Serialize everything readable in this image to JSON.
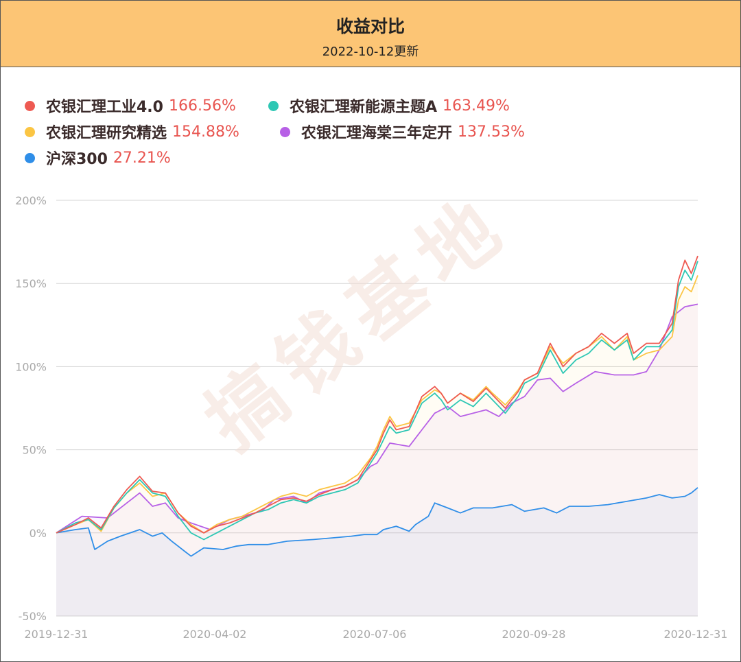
{
  "header": {
    "title": "收益对比",
    "subtitle": "2022-10-12更新"
  },
  "legend": [
    {
      "name": "农银汇理工业4.0",
      "pct": "166.56%",
      "color": "#ee5a52"
    },
    {
      "name": "农银汇理新能源主题A",
      "pct": "163.49%",
      "color": "#2ec7b4"
    },
    {
      "name": "农银汇理研究精选",
      "pct": "154.88%",
      "color": "#fbc543"
    },
    {
      "name": "农银汇理海棠三年定开",
      "pct": "137.53%",
      "color": "#b760e6"
    },
    {
      "name": "沪深300",
      "pct": "27.21%",
      "color": "#2f8ee8"
    }
  ],
  "watermark": "搞钱基地",
  "chart_data": {
    "type": "line",
    "y_ticks": [
      "200%",
      "150%",
      "100%",
      "50%",
      "0%",
      "-50%"
    ],
    "x_ticks": [
      "2019-12-31",
      "2020-04-02",
      "2020-07-06",
      "2020-09-28",
      "2020-12-31"
    ],
    "ylim": [
      -50,
      200
    ],
    "xlim": [
      0,
      1
    ],
    "grid": true,
    "series": [
      {
        "name": "沪深300",
        "color": "#2f8ee8",
        "fill": true,
        "points": [
          [
            0,
            0
          ],
          [
            0.03,
            2
          ],
          [
            0.05,
            3
          ],
          [
            0.06,
            -10
          ],
          [
            0.08,
            -5
          ],
          [
            0.1,
            -2
          ],
          [
            0.13,
            2
          ],
          [
            0.15,
            -2
          ],
          [
            0.165,
            0
          ],
          [
            0.18,
            -5
          ],
          [
            0.2,
            -11
          ],
          [
            0.21,
            -14
          ],
          [
            0.23,
            -9
          ],
          [
            0.26,
            -10
          ],
          [
            0.28,
            -8
          ],
          [
            0.3,
            -7
          ],
          [
            0.33,
            -7
          ],
          [
            0.36,
            -5
          ],
          [
            0.4,
            -4
          ],
          [
            0.43,
            -3
          ],
          [
            0.46,
            -2
          ],
          [
            0.48,
            -1
          ],
          [
            0.5,
            -1
          ],
          [
            0.51,
            2
          ],
          [
            0.53,
            4
          ],
          [
            0.55,
            1
          ],
          [
            0.56,
            5
          ],
          [
            0.58,
            10
          ],
          [
            0.59,
            18
          ],
          [
            0.61,
            15
          ],
          [
            0.63,
            12
          ],
          [
            0.65,
            15
          ],
          [
            0.68,
            15
          ],
          [
            0.71,
            17
          ],
          [
            0.73,
            13
          ],
          [
            0.76,
            15
          ],
          [
            0.78,
            12
          ],
          [
            0.8,
            16
          ],
          [
            0.83,
            16
          ],
          [
            0.86,
            17
          ],
          [
            0.89,
            19
          ],
          [
            0.92,
            21
          ],
          [
            0.94,
            23
          ],
          [
            0.96,
            21
          ],
          [
            0.98,
            22
          ],
          [
            0.99,
            24
          ],
          [
            1,
            27.21
          ]
        ]
      },
      {
        "name": "农银汇理海棠三年定开",
        "color": "#b760e6",
        "fill": true,
        "points": [
          [
            0,
            0
          ],
          [
            0.04,
            10
          ],
          [
            0.08,
            9
          ],
          [
            0.11,
            18
          ],
          [
            0.13,
            24
          ],
          [
            0.15,
            16
          ],
          [
            0.17,
            18
          ],
          [
            0.19,
            9
          ],
          [
            0.21,
            6
          ],
          [
            0.24,
            2
          ],
          [
            0.27,
            8
          ],
          [
            0.29,
            10
          ],
          [
            0.32,
            13
          ],
          [
            0.34,
            20
          ],
          [
            0.37,
            22
          ],
          [
            0.39,
            18
          ],
          [
            0.41,
            24
          ],
          [
            0.43,
            26
          ],
          [
            0.45,
            28
          ],
          [
            0.47,
            32
          ],
          [
            0.49,
            40
          ],
          [
            0.5,
            42
          ],
          [
            0.51,
            48
          ],
          [
            0.52,
            54
          ],
          [
            0.55,
            52
          ],
          [
            0.57,
            62
          ],
          [
            0.59,
            72
          ],
          [
            0.61,
            76
          ],
          [
            0.63,
            70
          ],
          [
            0.65,
            72
          ],
          [
            0.67,
            74
          ],
          [
            0.69,
            70
          ],
          [
            0.71,
            78
          ],
          [
            0.73,
            82
          ],
          [
            0.75,
            92
          ],
          [
            0.77,
            93
          ],
          [
            0.79,
            85
          ],
          [
            0.81,
            90
          ],
          [
            0.84,
            97
          ],
          [
            0.87,
            95
          ],
          [
            0.9,
            95
          ],
          [
            0.92,
            97
          ],
          [
            0.94,
            110
          ],
          [
            0.96,
            130
          ],
          [
            0.98,
            136
          ],
          [
            1,
            137.53
          ]
        ]
      },
      {
        "name": "农银汇理研究精选",
        "color": "#fbc543",
        "fill": true,
        "points": [
          [
            0,
            0
          ],
          [
            0.03,
            5
          ],
          [
            0.05,
            8
          ],
          [
            0.07,
            1
          ],
          [
            0.09,
            15
          ],
          [
            0.11,
            24
          ],
          [
            0.13,
            30
          ],
          [
            0.15,
            22
          ],
          [
            0.17,
            24
          ],
          [
            0.19,
            12
          ],
          [
            0.21,
            5
          ],
          [
            0.23,
            0
          ],
          [
            0.25,
            5
          ],
          [
            0.27,
            8
          ],
          [
            0.29,
            10
          ],
          [
            0.31,
            14
          ],
          [
            0.33,
            18
          ],
          [
            0.35,
            22
          ],
          [
            0.37,
            24
          ],
          [
            0.39,
            22
          ],
          [
            0.41,
            26
          ],
          [
            0.43,
            28
          ],
          [
            0.45,
            30
          ],
          [
            0.47,
            35
          ],
          [
            0.49,
            45
          ],
          [
            0.5,
            52
          ],
          [
            0.51,
            62
          ],
          [
            0.52,
            70
          ],
          [
            0.53,
            64
          ],
          [
            0.55,
            66
          ],
          [
            0.57,
            80
          ],
          [
            0.59,
            86
          ],
          [
            0.6,
            84
          ],
          [
            0.61,
            78
          ],
          [
            0.63,
            84
          ],
          [
            0.65,
            80
          ],
          [
            0.67,
            88
          ],
          [
            0.68,
            84
          ],
          [
            0.7,
            77
          ],
          [
            0.72,
            86
          ],
          [
            0.73,
            92
          ],
          [
            0.75,
            96
          ],
          [
            0.77,
            112
          ],
          [
            0.79,
            102
          ],
          [
            0.81,
            108
          ],
          [
            0.83,
            112
          ],
          [
            0.85,
            118
          ],
          [
            0.87,
            110
          ],
          [
            0.89,
            118
          ],
          [
            0.9,
            104
          ],
          [
            0.92,
            108
          ],
          [
            0.94,
            110
          ],
          [
            0.96,
            118
          ],
          [
            0.97,
            140
          ],
          [
            0.98,
            148
          ],
          [
            0.99,
            145
          ],
          [
            1,
            154.88
          ]
        ]
      },
      {
        "name": "农银汇理新能源主题A",
        "color": "#2ec7b4",
        "fill": false,
        "points": [
          [
            0,
            0
          ],
          [
            0.03,
            6
          ],
          [
            0.05,
            8
          ],
          [
            0.07,
            2
          ],
          [
            0.09,
            15
          ],
          [
            0.11,
            24
          ],
          [
            0.13,
            32
          ],
          [
            0.15,
            24
          ],
          [
            0.17,
            22
          ],
          [
            0.19,
            10
          ],
          [
            0.21,
            0
          ],
          [
            0.23,
            -4
          ],
          [
            0.25,
            0
          ],
          [
            0.27,
            4
          ],
          [
            0.29,
            8
          ],
          [
            0.31,
            12
          ],
          [
            0.33,
            14
          ],
          [
            0.35,
            18
          ],
          [
            0.37,
            20
          ],
          [
            0.39,
            18
          ],
          [
            0.41,
            22
          ],
          [
            0.43,
            24
          ],
          [
            0.45,
            26
          ],
          [
            0.47,
            30
          ],
          [
            0.49,
            42
          ],
          [
            0.5,
            48
          ],
          [
            0.51,
            56
          ],
          [
            0.52,
            64
          ],
          [
            0.53,
            60
          ],
          [
            0.55,
            62
          ],
          [
            0.57,
            78
          ],
          [
            0.59,
            84
          ],
          [
            0.6,
            80
          ],
          [
            0.61,
            74
          ],
          [
            0.63,
            80
          ],
          [
            0.65,
            76
          ],
          [
            0.67,
            84
          ],
          [
            0.68,
            80
          ],
          [
            0.7,
            72
          ],
          [
            0.72,
            82
          ],
          [
            0.73,
            90
          ],
          [
            0.75,
            94
          ],
          [
            0.77,
            110
          ],
          [
            0.79,
            96
          ],
          [
            0.81,
            104
          ],
          [
            0.83,
            108
          ],
          [
            0.85,
            116
          ],
          [
            0.87,
            110
          ],
          [
            0.89,
            116
          ],
          [
            0.9,
            104
          ],
          [
            0.92,
            112
          ],
          [
            0.94,
            112
          ],
          [
            0.96,
            122
          ],
          [
            0.97,
            148
          ],
          [
            0.98,
            158
          ],
          [
            0.99,
            152
          ],
          [
            1,
            163.49
          ]
        ]
      },
      {
        "name": "农银汇理工业4.0",
        "color": "#ee5a52",
        "fill": false,
        "points": [
          [
            0,
            0
          ],
          [
            0.03,
            5
          ],
          [
            0.05,
            9
          ],
          [
            0.07,
            3
          ],
          [
            0.09,
            16
          ],
          [
            0.11,
            26
          ],
          [
            0.13,
            34
          ],
          [
            0.15,
            25
          ],
          [
            0.17,
            24
          ],
          [
            0.19,
            12
          ],
          [
            0.21,
            4
          ],
          [
            0.23,
            0
          ],
          [
            0.25,
            4
          ],
          [
            0.27,
            6
          ],
          [
            0.29,
            9
          ],
          [
            0.31,
            12
          ],
          [
            0.33,
            16
          ],
          [
            0.35,
            20
          ],
          [
            0.37,
            21
          ],
          [
            0.39,
            19
          ],
          [
            0.41,
            23
          ],
          [
            0.43,
            26
          ],
          [
            0.45,
            28
          ],
          [
            0.47,
            32
          ],
          [
            0.49,
            44
          ],
          [
            0.5,
            50
          ],
          [
            0.51,
            60
          ],
          [
            0.52,
            68
          ],
          [
            0.53,
            62
          ],
          [
            0.55,
            64
          ],
          [
            0.57,
            82
          ],
          [
            0.59,
            88
          ],
          [
            0.6,
            84
          ],
          [
            0.61,
            78
          ],
          [
            0.63,
            84
          ],
          [
            0.65,
            79
          ],
          [
            0.67,
            87
          ],
          [
            0.68,
            83
          ],
          [
            0.7,
            75
          ],
          [
            0.72,
            85
          ],
          [
            0.73,
            92
          ],
          [
            0.75,
            96
          ],
          [
            0.77,
            114
          ],
          [
            0.79,
            100
          ],
          [
            0.81,
            108
          ],
          [
            0.83,
            112
          ],
          [
            0.85,
            120
          ],
          [
            0.87,
            114
          ],
          [
            0.89,
            120
          ],
          [
            0.9,
            108
          ],
          [
            0.92,
            114
          ],
          [
            0.94,
            114
          ],
          [
            0.96,
            126
          ],
          [
            0.97,
            152
          ],
          [
            0.98,
            164
          ],
          [
            0.99,
            156
          ],
          [
            1,
            166.56
          ]
        ]
      }
    ]
  }
}
